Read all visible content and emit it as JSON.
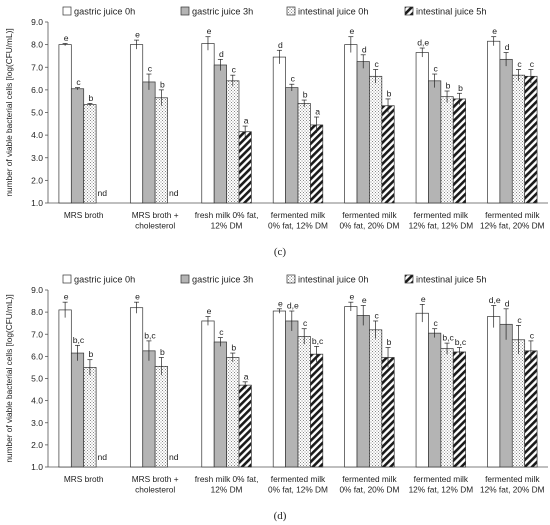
{
  "chart_data": [
    {
      "type": "bar",
      "panel_label": "(c)",
      "ylabel": "number of viable bacterial cells [log(CFU/mL)]",
      "ylim": [
        1.0,
        9.0
      ],
      "yticks": [
        "1.0",
        "2.0",
        "3.0",
        "4.0",
        "5.0",
        "6.0",
        "7.0",
        "8.0",
        "9.0"
      ],
      "legend_position": "top",
      "categories": [
        [
          "MRS broth"
        ],
        [
          "MRS broth +",
          "cholesterol"
        ],
        [
          "fresh milk 0% fat,",
          "12% DM"
        ],
        [
          "fermented milk",
          "0% fat, 12% DM"
        ],
        [
          "fermented milk",
          "0% fat, 20% DM"
        ],
        [
          "fermented milk",
          "12% fat, 12% DM"
        ],
        [
          "fermented milk",
          "12% fat, 20% DM"
        ]
      ],
      "series": [
        {
          "name": "gastric juice 0h",
          "values": [
            8.0,
            8.0,
            8.05,
            7.45,
            8.0,
            7.65,
            8.15
          ],
          "errors": [
            0.05,
            0.2,
            0.3,
            0.3,
            0.35,
            0.2,
            0.2
          ],
          "labels": [
            "e",
            "e",
            "e",
            "d",
            "e",
            "d,e",
            "e"
          ]
        },
        {
          "name": "gastric juice 3h",
          "values": [
            6.05,
            6.35,
            7.1,
            6.1,
            7.25,
            6.4,
            7.35
          ],
          "errors": [
            0.05,
            0.35,
            0.25,
            0.15,
            0.3,
            0.3,
            0.3
          ],
          "labels": [
            "c",
            "c",
            "d",
            "c",
            "d",
            "c",
            "d"
          ]
        },
        {
          "name": "intestinal juice 0h",
          "values": [
            5.35,
            5.65,
            6.4,
            5.4,
            6.6,
            5.7,
            6.65
          ],
          "errors": [
            0.05,
            0.35,
            0.25,
            0.15,
            0.3,
            0.25,
            0.25
          ],
          "labels": [
            "b",
            "b",
            "c",
            "b",
            "c",
            "b",
            "c"
          ]
        },
        {
          "name": "intestinal juice 5h",
          "values": [
            null,
            null,
            4.15,
            4.45,
            5.3,
            5.6,
            6.6
          ],
          "errors": [
            0,
            0,
            0.25,
            0.35,
            0.3,
            0.25,
            0.3
          ],
          "labels": [
            "nd",
            "nd",
            "a",
            "a",
            "b",
            "b",
            "c"
          ]
        }
      ]
    },
    {
      "type": "bar",
      "panel_label": "(d)",
      "ylabel": "number of viable bacterial cells [log(CFU/mL)]",
      "ylim": [
        1.0,
        9.0
      ],
      "yticks": [
        "1.0",
        "2.0",
        "3.0",
        "4.0",
        "5.0",
        "6.0",
        "7.0",
        "8.0",
        "9.0"
      ],
      "legend_position": "top",
      "categories": [
        [
          "MRS broth"
        ],
        [
          "MRS broth +",
          "cholesterol"
        ],
        [
          "fresh milk 0% fat,",
          "12% DM"
        ],
        [
          "fermented milk",
          "0% fat, 12% DM"
        ],
        [
          "fermented milk",
          "0% fat, 20% DM"
        ],
        [
          "fermented milk",
          "12% fat, 12% DM"
        ],
        [
          "fermented milk",
          "12% fat, 20% DM"
        ]
      ],
      "series": [
        {
          "name": "gastric juice 0h",
          "values": [
            8.1,
            8.2,
            7.6,
            8.05,
            8.25,
            7.95,
            7.8
          ],
          "errors": [
            0.35,
            0.25,
            0.2,
            0.1,
            0.2,
            0.4,
            0.5
          ],
          "labels": [
            "e",
            "e",
            "e",
            "e",
            "e",
            "e",
            "d,e"
          ]
        },
        {
          "name": "gastric juice 3h",
          "values": [
            6.15,
            6.25,
            6.65,
            7.6,
            7.85,
            7.05,
            7.45
          ],
          "errors": [
            0.35,
            0.45,
            0.2,
            0.45,
            0.45,
            0.2,
            0.7
          ],
          "labels": [
            "b,c",
            "b,c",
            "c",
            "d,e",
            "e",
            "c",
            "d"
          ]
        },
        {
          "name": "intestinal juice 0h",
          "values": [
            5.5,
            5.55,
            5.95,
            6.9,
            7.2,
            6.35,
            6.75
          ],
          "errors": [
            0.35,
            0.4,
            0.2,
            0.35,
            0.4,
            0.25,
            0.65
          ],
          "labels": [
            "b",
            "b",
            "b",
            "c",
            "c",
            "b,c",
            "c"
          ]
        },
        {
          "name": "intestinal juice 5h",
          "values": [
            null,
            null,
            4.7,
            6.1,
            5.95,
            6.2,
            6.25
          ],
          "errors": [
            0,
            0,
            0.15,
            0.35,
            0.45,
            0.2,
            0.45
          ],
          "labels": [
            "nd",
            "nd",
            "a",
            "b,c",
            "b",
            "b,c",
            "c"
          ]
        }
      ]
    }
  ]
}
